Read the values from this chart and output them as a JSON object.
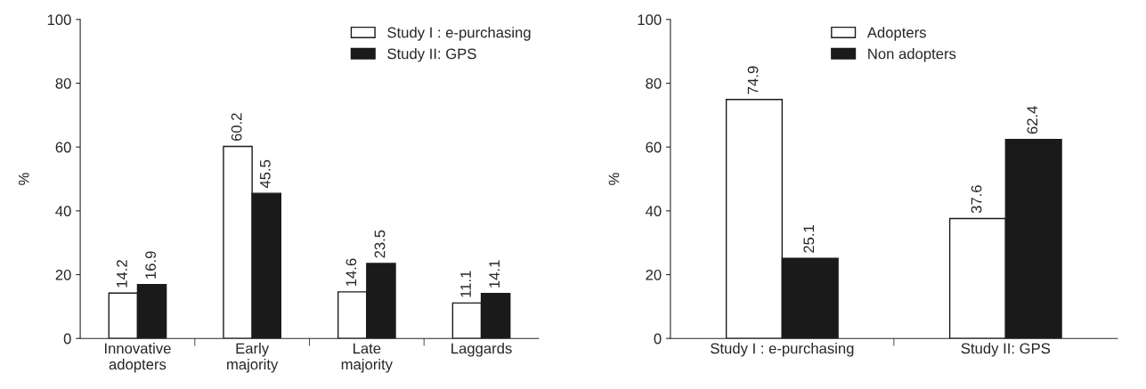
{
  "chart_data": [
    {
      "type": "bar",
      "ylabel": "%",
      "categories": [
        "Innovative\nadopters",
        "Early\nmajority",
        "Late\nmajority",
        "Laggards"
      ],
      "series": [
        {
          "name": "Study I : e-purchasing",
          "color": "#ffffff",
          "values": [
            14.2,
            60.2,
            14.6,
            11.1
          ]
        },
        {
          "name": "Study II: GPS",
          "color": "#1a1a1a",
          "values": [
            16.9,
            45.5,
            23.5,
            14.1
          ]
        }
      ],
      "ylim": [
        0,
        100
      ],
      "yticks": [
        0,
        20,
        40,
        60,
        80,
        100
      ],
      "data_labels": true,
      "legend": "top right",
      "grid": false
    },
    {
      "type": "bar",
      "ylabel": "%",
      "categories": [
        "Study I : e-purchasing",
        "Study II: GPS"
      ],
      "series": [
        {
          "name": "Adopters",
          "color": "#ffffff",
          "values": [
            74.9,
            37.6
          ]
        },
        {
          "name": "Non adopters",
          "color": "#1a1a1a",
          "values": [
            25.1,
            62.4
          ]
        }
      ],
      "ylim": [
        0,
        100
      ],
      "yticks": [
        0,
        20,
        40,
        60,
        80,
        100
      ],
      "data_labels": true,
      "legend": "top",
      "grid": false
    }
  ]
}
